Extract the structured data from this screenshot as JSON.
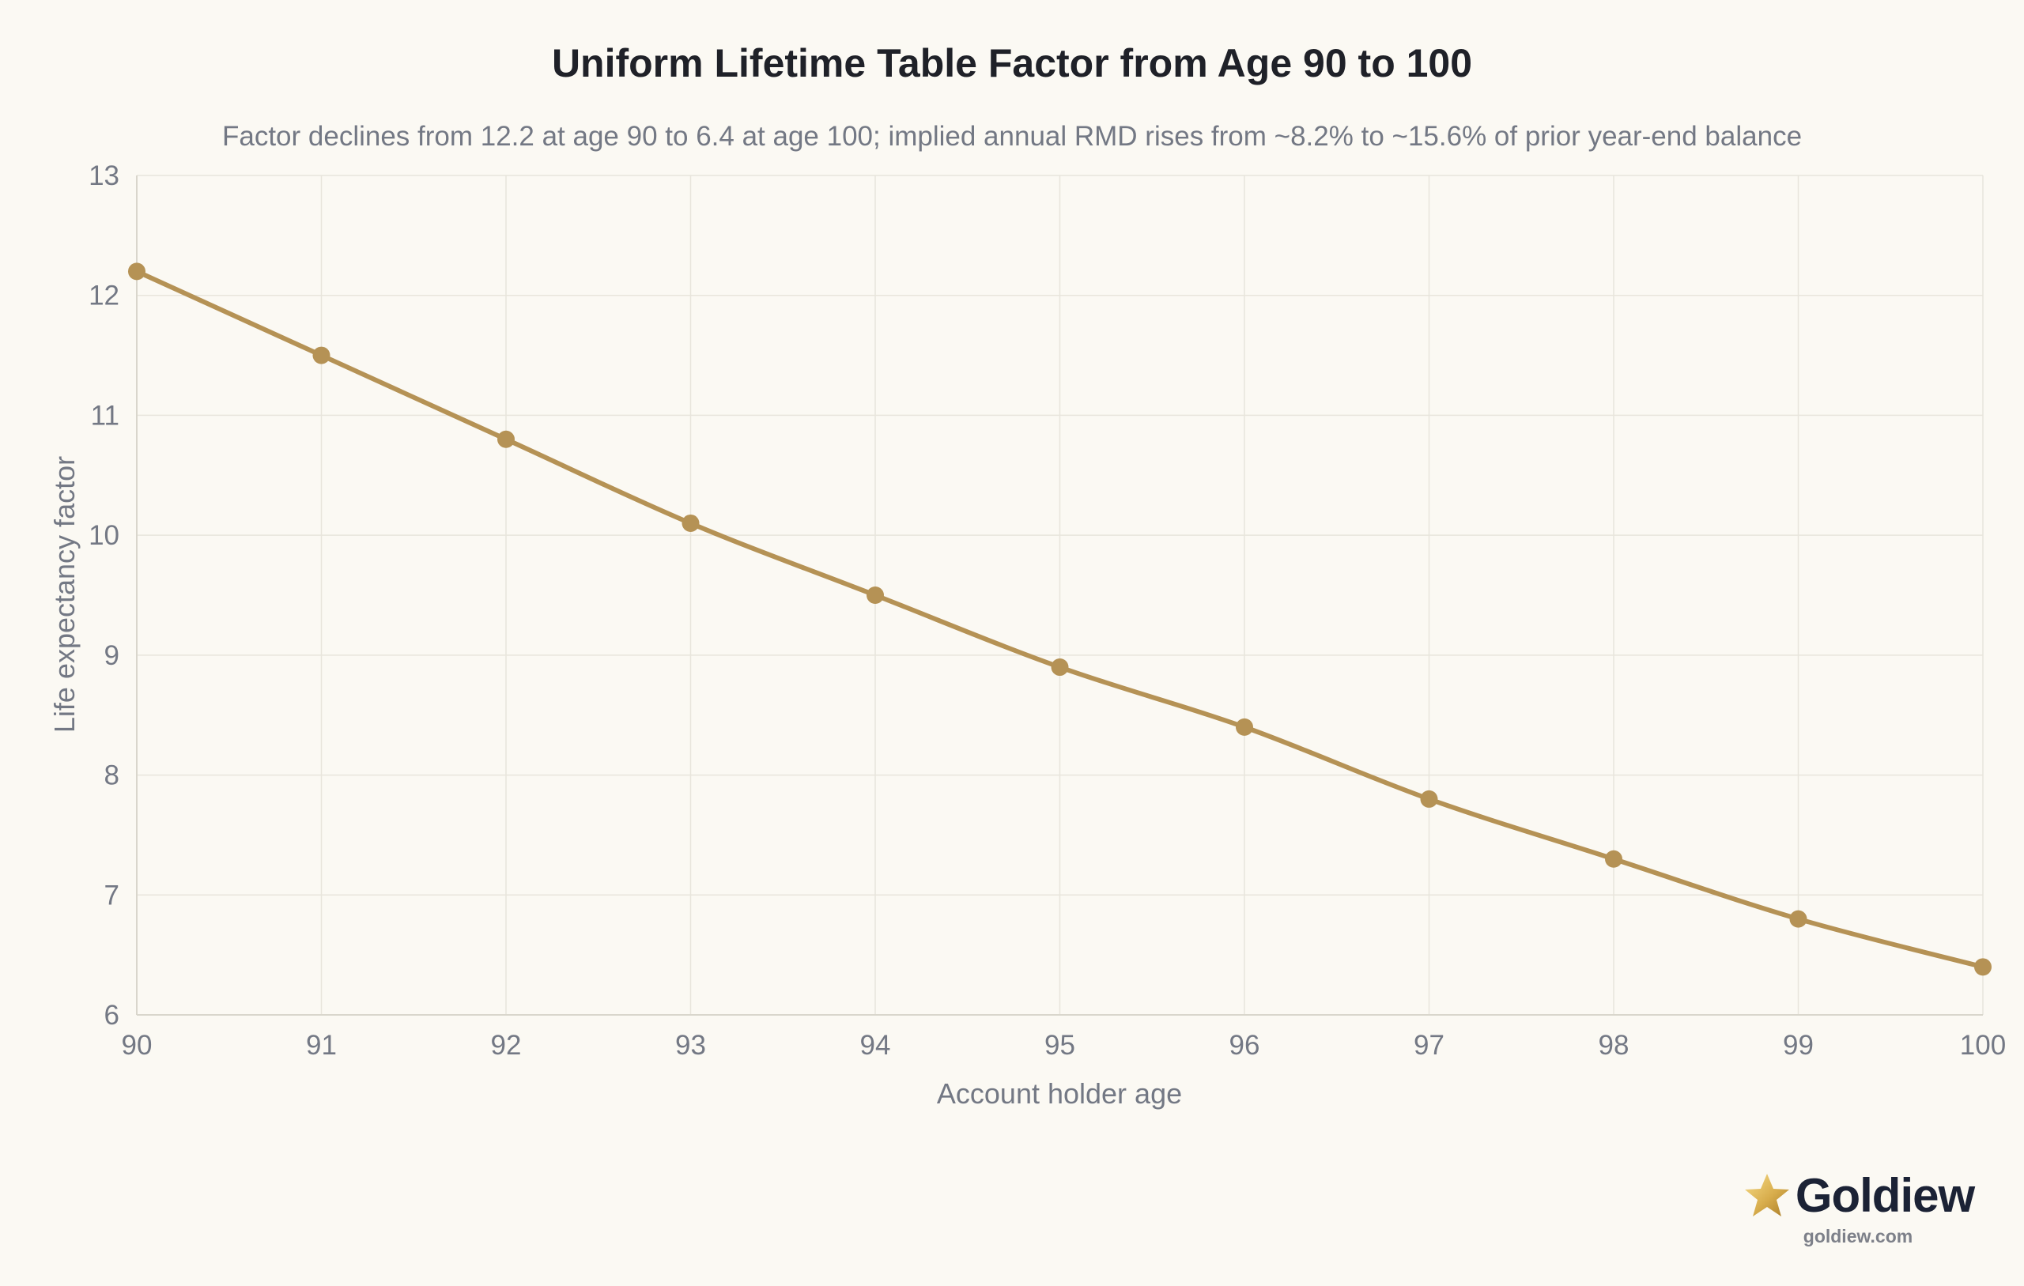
{
  "chart_data": {
    "type": "line",
    "title": "Uniform Lifetime Table Factor from Age 90 to 100",
    "subtitle": "Factor declines from 12.2 at age 90 to 6.4 at age 100; implied annual RMD rises from ~8.2% to ~15.6% of prior year-end balance",
    "xlabel": "Account holder age",
    "ylabel": "Life expectancy factor",
    "x": [
      90,
      91,
      92,
      93,
      94,
      95,
      96,
      97,
      98,
      99,
      100
    ],
    "series": [
      {
        "values": [
          12.2,
          11.5,
          10.8,
          10.1,
          9.5,
          8.9,
          8.4,
          7.8,
          7.3,
          6.8,
          6.4
        ],
        "color": "#b59255"
      }
    ],
    "xlim": [
      90,
      100
    ],
    "ylim": [
      6,
      13
    ],
    "x_ticks": [
      "90",
      "91",
      "92",
      "93",
      "94",
      "95",
      "96",
      "97",
      "98",
      "99",
      "100"
    ],
    "y_ticks": [
      "6",
      "7",
      "8",
      "9",
      "10",
      "11",
      "12",
      "13"
    ],
    "grid": true,
    "legend": "none"
  },
  "brand": {
    "name": "Goldiew",
    "url": "goldiew.com",
    "icon": "star-icon"
  }
}
